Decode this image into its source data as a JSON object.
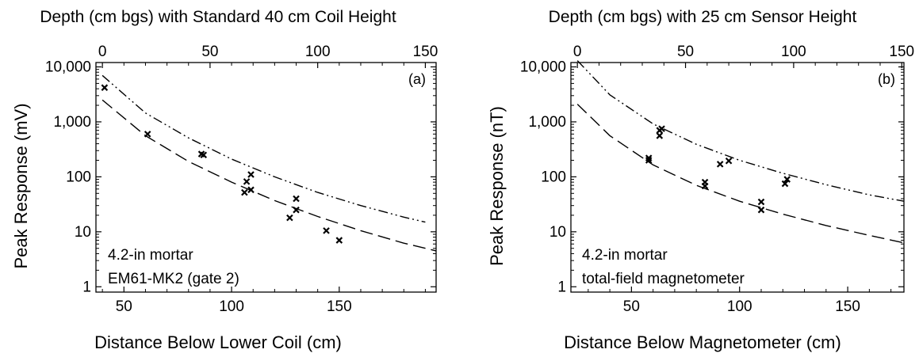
{
  "chart_data": [
    {
      "type": "scatter",
      "panel_label": "(a)",
      "top_title": "Depth (cm bgs) with Standard 40 cm Coil Height",
      "xlabel": "Distance Below Lower Coil (cm)",
      "ylabel": "Peak Response (mV)",
      "xlim": [
        37,
        195
      ],
      "ylim": [
        0.8,
        12000
      ],
      "yscale": "log",
      "x_ticks": [
        "50",
        "100",
        "150"
      ],
      "y_ticks": [
        "1",
        "10",
        "100",
        "1,000",
        "10,000"
      ],
      "top_xlim": [
        -3,
        155
      ],
      "top_ticks": [
        "0",
        "50",
        "100",
        "150"
      ],
      "annotations": [
        "4.2-in mortar",
        "EM61-MK2 (gate 2)"
      ],
      "points": [
        {
          "x": 41,
          "y": 4200
        },
        {
          "x": 61,
          "y": 600
        },
        {
          "x": 86,
          "y": 260
        },
        {
          "x": 87,
          "y": 250
        },
        {
          "x": 106,
          "y": 52
        },
        {
          "x": 107,
          "y": 82
        },
        {
          "x": 109,
          "y": 58
        },
        {
          "x": 109,
          "y": 110
        },
        {
          "x": 127,
          "y": 18
        },
        {
          "x": 130,
          "y": 25
        },
        {
          "x": 130,
          "y": 40
        },
        {
          "x": 144,
          "y": 10.5
        },
        {
          "x": 150,
          "y": 7
        }
      ],
      "curves": [
        {
          "style": "dash-dot-dot",
          "points": [
            [
              40,
              7000
            ],
            [
              60,
              1450
            ],
            [
              80,
              510
            ],
            [
              100,
              210
            ],
            [
              120,
              100
            ],
            [
              140,
              52
            ],
            [
              160,
              30
            ],
            [
              180,
              18.5
            ],
            [
              190,
              15
            ]
          ]
        },
        {
          "style": "long-dash",
          "points": [
            [
              40,
              2500
            ],
            [
              60,
              560
            ],
            [
              80,
              190
            ],
            [
              100,
              80
            ],
            [
              120,
              37
            ],
            [
              140,
              19
            ],
            [
              160,
              10.5
            ],
            [
              180,
              6.2
            ],
            [
              195,
              4.5
            ]
          ]
        }
      ]
    },
    {
      "type": "scatter",
      "panel_label": "(b)",
      "top_title": "Depth (cm bgs) with 25 cm Sensor Height",
      "xlabel": "Distance Below Magnetometer (cm)",
      "ylabel": "Peak Response (nT)",
      "xlim": [
        22,
        176
      ],
      "ylim": [
        0.8,
        12000
      ],
      "yscale": "log",
      "x_ticks": [
        "50",
        "100",
        "150"
      ],
      "y_ticks": [
        "1",
        "10",
        "100",
        "1,000",
        "10,000"
      ],
      "top_xlim": [
        -3,
        151
      ],
      "top_ticks": [
        "0",
        "50",
        "100",
        "150"
      ],
      "annotations": [
        "4.2-in mortar",
        "total-field magnetometer"
      ],
      "points": [
        {
          "x": 58,
          "y": 200
        },
        {
          "x": 58,
          "y": 220
        },
        {
          "x": 63,
          "y": 560
        },
        {
          "x": 63,
          "y": 700
        },
        {
          "x": 64,
          "y": 750
        },
        {
          "x": 84,
          "y": 68
        },
        {
          "x": 84,
          "y": 80
        },
        {
          "x": 91,
          "y": 170
        },
        {
          "x": 95,
          "y": 195
        },
        {
          "x": 110,
          "y": 25
        },
        {
          "x": 110,
          "y": 35
        },
        {
          "x": 121,
          "y": 75
        },
        {
          "x": 122,
          "y": 90
        }
      ],
      "curves": [
        {
          "style": "dash-dot-dot",
          "points": [
            [
              25,
              13000
            ],
            [
              40,
              3100
            ],
            [
              60,
              920
            ],
            [
              80,
              390
            ],
            [
              100,
              200
            ],
            [
              120,
              116
            ],
            [
              140,
              72
            ],
            [
              160,
              47
            ],
            [
              176,
              36
            ]
          ]
        },
        {
          "style": "long-dash",
          "points": [
            [
              25,
              2100
            ],
            [
              40,
              560
            ],
            [
              60,
              165
            ],
            [
              80,
              70
            ],
            [
              100,
              36
            ],
            [
              120,
              21
            ],
            [
              140,
              13
            ],
            [
              160,
              8.6
            ],
            [
              176,
              6.3
            ]
          ]
        }
      ]
    }
  ]
}
